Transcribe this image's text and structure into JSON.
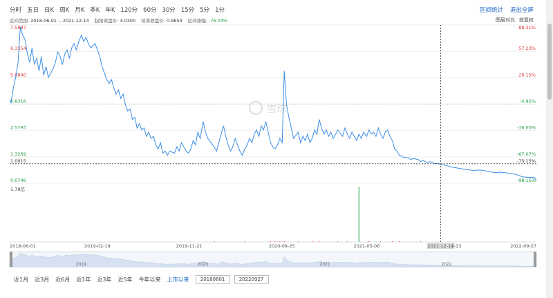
{
  "periods": [
    "分时",
    "五日",
    "日K",
    "周K",
    "月K",
    "季K",
    "年K",
    "120分",
    "60分",
    "30分",
    "15分",
    "5分",
    "1分"
  ],
  "top_links": [
    "区间统计",
    "退出全屏"
  ],
  "info": {
    "range_label": "区间范围:",
    "range_value": "2018-06-01 -- 2021-12-14",
    "start_label": "起始收盘价:",
    "start_value": "4.0300",
    "end_label": "结束收盘价:",
    "end_value": "0.9659",
    "chg_label": "区间涨幅:",
    "chg_value": "-76.03%"
  },
  "corner_labels": [
    "图层对比",
    "前复权"
  ],
  "watermark": "雪球",
  "price_labels": [
    "7.5887",
    "6.3354",
    "5.0840",
    "3.8316",
    "2.5793",
    "1.3269",
    "1.0015",
    "0.0746"
  ],
  "pct_labels": [
    "88.31%",
    "57.23%",
    "26.15%",
    "-4.92%",
    "-36.00%",
    "-67.07%",
    "-75.15%",
    "-98.15%"
  ],
  "volume_max_label": "1.79亿",
  "x_labels": [
    "2018-06-01",
    "2019-02-19",
    "2019-11-21",
    "2020-08-25",
    "2021-05-06",
    "2021-12-14",
    "1-13",
    "2022-09-27"
  ],
  "navigator_years": [
    "2019",
    "2020",
    "2021",
    "2022"
  ],
  "ranges": [
    "近1月",
    "近3月",
    "近6月",
    "近1年",
    "近3年",
    "近5年",
    "今年以来",
    "上市以来"
  ],
  "date_from": "20180601",
  "date_to": "20220927",
  "colors": {
    "line": "#3a8ee6",
    "up": "#e4393c",
    "down": "#1a9a3a",
    "link": "#1a66c4"
  },
  "chart_data": {
    "type": "line",
    "y_range": [
      0.0746,
      7.5887
    ],
    "ticks": [
      7.5887,
      6.3354,
      5.084,
      3.8316,
      2.5793,
      1.3269,
      0.0746
    ],
    "crosshair_date": "2021-12-14",
    "crosshair_price": 1.0015,
    "x_anchor_dates": [
      "2018-06-01",
      "2019-02-19",
      "2019-11-21",
      "2020-08-25",
      "2021-05-06",
      "2021-12-14",
      "2022-09-27"
    ],
    "series": [
      {
        "points": [
          [
            "2018-06-01",
            4.03
          ],
          [
            "2018-06-05",
            3.9
          ],
          [
            "2018-06-12",
            4.6
          ],
          [
            "2018-06-19",
            5.1
          ],
          [
            "2018-06-26",
            5.8
          ],
          [
            "2018-07-03",
            7.5
          ],
          [
            "2018-07-10",
            7.1
          ],
          [
            "2018-07-17",
            6.9
          ],
          [
            "2018-07-24",
            6.2
          ],
          [
            "2018-07-31",
            5.8
          ],
          [
            "2018-08-07",
            6.5
          ],
          [
            "2018-08-14",
            5.7
          ],
          [
            "2018-08-21",
            6.0
          ],
          [
            "2018-08-28",
            5.4
          ],
          [
            "2018-09-04",
            6.1
          ],
          [
            "2018-09-11",
            5.2
          ],
          [
            "2018-09-18",
            5.6
          ],
          [
            "2018-09-25",
            5.1
          ],
          [
            "2018-10-09",
            5.5
          ],
          [
            "2018-10-16",
            5.8
          ],
          [
            "2018-10-23",
            6.3
          ],
          [
            "2018-10-30",
            6.1
          ],
          [
            "2018-11-06",
            5.7
          ],
          [
            "2018-11-13",
            6.2
          ],
          [
            "2018-11-20",
            6.4
          ],
          [
            "2018-11-27",
            6.0
          ],
          [
            "2018-12-04",
            6.5
          ],
          [
            "2018-12-11",
            6.7
          ],
          [
            "2018-12-18",
            6.4
          ],
          [
            "2018-12-25",
            6.8
          ],
          [
            "2019-01-02",
            7.1
          ],
          [
            "2019-01-09",
            6.8
          ],
          [
            "2019-01-16",
            7.0
          ],
          [
            "2019-01-23",
            6.7
          ],
          [
            "2019-01-30",
            6.5
          ],
          [
            "2019-02-12",
            6.7
          ],
          [
            "2019-02-26",
            6.1
          ],
          [
            "2019-03-05",
            5.6
          ],
          [
            "2019-03-12",
            5.3
          ],
          [
            "2019-03-19",
            5.0
          ],
          [
            "2019-03-26",
            4.8
          ],
          [
            "2019-04-02",
            5.0
          ],
          [
            "2019-04-09",
            4.6
          ],
          [
            "2019-04-16",
            4.3
          ],
          [
            "2019-04-23",
            4.5
          ],
          [
            "2019-04-30",
            4.1
          ],
          [
            "2019-05-07",
            4.3
          ],
          [
            "2019-05-14",
            3.8
          ],
          [
            "2019-05-21",
            3.5
          ],
          [
            "2019-05-28",
            3.6
          ],
          [
            "2019-06-04",
            3.1
          ],
          [
            "2019-06-11",
            3.2
          ],
          [
            "2019-06-18",
            2.7
          ],
          [
            "2019-06-25",
            2.9
          ],
          [
            "2019-07-02",
            2.6
          ],
          [
            "2019-07-09",
            2.7
          ],
          [
            "2019-07-16",
            2.3
          ],
          [
            "2019-07-23",
            2.5
          ],
          [
            "2019-07-30",
            2.2
          ],
          [
            "2019-08-06",
            2.3
          ],
          [
            "2019-08-13",
            1.9
          ],
          [
            "2019-08-20",
            1.7
          ],
          [
            "2019-08-27",
            2.0
          ],
          [
            "2019-09-03",
            1.5
          ],
          [
            "2019-09-10",
            1.6
          ],
          [
            "2019-09-17",
            1.4
          ],
          [
            "2019-09-24",
            1.6
          ],
          [
            "2019-10-08",
            1.5
          ],
          [
            "2019-10-15",
            1.8
          ],
          [
            "2019-10-22",
            1.6
          ],
          [
            "2019-10-29",
            2.0
          ],
          [
            "2019-11-05",
            1.8
          ],
          [
            "2019-11-12",
            1.6
          ],
          [
            "2019-11-19",
            1.5
          ],
          [
            "2019-11-26",
            1.7
          ],
          [
            "2019-12-03",
            2.1
          ],
          [
            "2019-12-10",
            1.9
          ],
          [
            "2019-12-17",
            2.5
          ],
          [
            "2019-12-24",
            2.2
          ],
          [
            "2020-01-02",
            3.0
          ],
          [
            "2020-01-09",
            2.5
          ],
          [
            "2020-01-16",
            2.2
          ],
          [
            "2020-02-04",
            1.8
          ],
          [
            "2020-02-11",
            1.6
          ],
          [
            "2020-02-18",
            2.0
          ],
          [
            "2020-02-25",
            2.4
          ],
          [
            "2020-03-03",
            2.8
          ],
          [
            "2020-03-10",
            2.3
          ],
          [
            "2020-03-17",
            1.9
          ],
          [
            "2020-03-24",
            1.6
          ],
          [
            "2020-03-31",
            1.8
          ],
          [
            "2020-04-07",
            2.2
          ],
          [
            "2020-04-14",
            1.9
          ],
          [
            "2020-04-21",
            1.6
          ],
          [
            "2020-04-28",
            1.4
          ],
          [
            "2020-05-06",
            1.7
          ],
          [
            "2020-05-13",
            1.9
          ],
          [
            "2020-05-20",
            2.2
          ],
          [
            "2020-05-27",
            2.0
          ],
          [
            "2020-06-03",
            2.4
          ],
          [
            "2020-06-10",
            2.6
          ],
          [
            "2020-06-17",
            2.3
          ],
          [
            "2020-06-24",
            2.8
          ],
          [
            "2020-07-01",
            2.6
          ],
          [
            "2020-07-08",
            3.0
          ],
          [
            "2020-07-15",
            2.5
          ],
          [
            "2020-07-22",
            2.0
          ],
          [
            "2020-07-29",
            1.8
          ],
          [
            "2020-08-05",
            1.7
          ],
          [
            "2020-08-12",
            1.9
          ],
          [
            "2020-08-19",
            2.2
          ],
          [
            "2020-08-26",
            2.0
          ],
          [
            "2020-09-01",
            5.4
          ],
          [
            "2020-09-08",
            3.8
          ],
          [
            "2020-09-15",
            3.2
          ],
          [
            "2020-09-22",
            2.7
          ],
          [
            "2020-09-29",
            2.2
          ],
          [
            "2020-10-13",
            2.5
          ],
          [
            "2020-10-20",
            2.0
          ],
          [
            "2020-10-27",
            2.3
          ],
          [
            "2020-11-03",
            2.1
          ],
          [
            "2020-11-10",
            2.4
          ],
          [
            "2020-11-17",
            2.0
          ],
          [
            "2020-11-24",
            2.2
          ],
          [
            "2020-12-01",
            2.6
          ],
          [
            "2020-12-08",
            2.4
          ],
          [
            "2020-12-15",
            3.1
          ],
          [
            "2020-12-22",
            2.7
          ],
          [
            "2020-12-29",
            2.4
          ],
          [
            "2021-01-05",
            2.6
          ],
          [
            "2021-01-12",
            2.3
          ],
          [
            "2021-01-19",
            2.5
          ],
          [
            "2021-01-26",
            2.2
          ],
          [
            "2021-02-02",
            2.4
          ],
          [
            "2021-02-09",
            2.6
          ],
          [
            "2021-02-23",
            2.3
          ],
          [
            "2021-03-02",
            2.7
          ],
          [
            "2021-03-09",
            2.4
          ],
          [
            "2021-03-16",
            2.2
          ],
          [
            "2021-03-23",
            2.5
          ],
          [
            "2021-03-30",
            2.3
          ],
          [
            "2021-04-06",
            2.1
          ],
          [
            "2021-04-13",
            2.4
          ],
          [
            "2021-04-20",
            2.2
          ],
          [
            "2021-04-27",
            2.5
          ],
          [
            "2021-05-06",
            2.3
          ],
          [
            "2021-05-13",
            2.6
          ],
          [
            "2021-05-20",
            2.4
          ],
          [
            "2021-05-27",
            2.5
          ],
          [
            "2021-06-03",
            2.3
          ],
          [
            "2021-06-10",
            2.7
          ],
          [
            "2021-06-17",
            2.4
          ],
          [
            "2021-06-24",
            2.2
          ],
          [
            "2021-07-01",
            2.5
          ],
          [
            "2021-07-08",
            2.6
          ],
          [
            "2021-07-15",
            2.3
          ],
          [
            "2021-07-22",
            2.1
          ],
          [
            "2021-07-29",
            1.7
          ],
          [
            "2021-08-05",
            1.6
          ],
          [
            "2021-08-12",
            1.4
          ],
          [
            "2021-08-19",
            1.35
          ],
          [
            "2021-08-26",
            1.3
          ],
          [
            "2021-09-02",
            1.3
          ],
          [
            "2021-09-09",
            1.28
          ],
          [
            "2021-09-16",
            1.2
          ],
          [
            "2021-09-23",
            1.25
          ],
          [
            "2021-10-08",
            1.2
          ],
          [
            "2021-10-15",
            1.1
          ],
          [
            "2021-10-22",
            1.15
          ],
          [
            "2021-10-29",
            1.1
          ],
          [
            "2021-11-05",
            1.05
          ],
          [
            "2021-11-12",
            1.1
          ],
          [
            "2021-11-19",
            1.05
          ],
          [
            "2021-11-26",
            1.0
          ],
          [
            "2021-12-03",
            1.02
          ],
          [
            "2021-12-14",
            0.9659
          ],
          [
            "2021-12-21",
            0.95
          ],
          [
            "2022-01-04",
            0.9
          ],
          [
            "2022-01-13",
            0.85
          ],
          [
            "2022-02-08",
            0.78
          ],
          [
            "2022-03-01",
            0.72
          ],
          [
            "2022-03-22",
            0.68
          ],
          [
            "2022-04-12",
            0.7
          ],
          [
            "2022-05-05",
            0.64
          ],
          [
            "2022-05-24",
            0.58
          ],
          [
            "2022-06-14",
            0.6
          ],
          [
            "2022-07-05",
            0.55
          ],
          [
            "2022-07-26",
            0.5
          ],
          [
            "2022-08-16",
            0.38
          ],
          [
            "2022-09-06",
            0.35
          ],
          [
            "2022-09-20",
            0.36
          ],
          [
            "2022-09-27",
            0.2
          ]
        ]
      }
    ],
    "volume": [
      [
        "2020-02-05",
        0.01,
        "up"
      ],
      [
        "2020-05-06",
        0.02,
        "up"
      ],
      [
        "2020-07-22",
        0.03,
        "up"
      ],
      [
        "2020-08-05",
        0.01,
        "up"
      ],
      [
        "2020-08-19",
        0.03,
        "up"
      ],
      [
        "2020-09-01",
        0.02,
        "up"
      ],
      [
        "2020-10-13",
        0.01,
        "up"
      ],
      [
        "2020-11-24",
        0.02,
        "up"
      ],
      [
        "2020-12-15",
        0.01,
        "up"
      ],
      [
        "2021-02-09",
        0.02,
        "up"
      ],
      [
        "2021-03-09",
        0.015,
        "up"
      ],
      [
        "2021-04-13",
        1.79,
        "down"
      ],
      [
        "2021-05-13",
        0.03,
        "up"
      ],
      [
        "2021-06-17",
        0.02,
        "up"
      ],
      [
        "2021-07-22",
        0.01,
        "up"
      ],
      [
        "2021-08-12",
        0.02,
        "up"
      ],
      [
        "2021-10-15",
        0.01,
        "up"
      ],
      [
        "2021-12-14",
        0.02,
        "up"
      ]
    ]
  }
}
